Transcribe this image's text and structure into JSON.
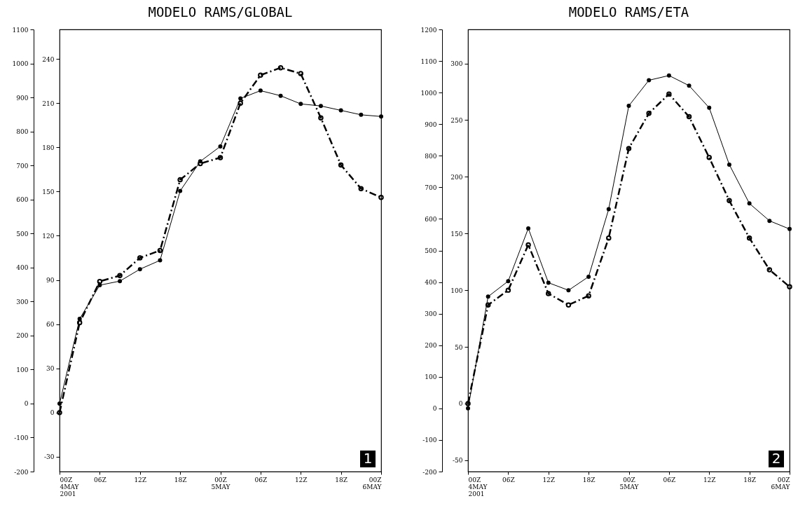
{
  "chart_data": [
    {
      "type": "line",
      "title": "MODELO RAMS/GLOBAL",
      "x": [
        "2001-05-04T00:00",
        "2001-05-04T03:00",
        "2001-05-04T06:00",
        "2001-05-04T09:00",
        "2001-05-04T12:00",
        "2001-05-04T15:00",
        "2001-05-04T18:00",
        "2001-05-04T21:00",
        "2001-05-05T00:00",
        "2001-05-05T03:00",
        "2001-05-05T06:00",
        "2001-05-05T09:00",
        "2001-05-05T12:00",
        "2001-05-05T15:00",
        "2001-05-05T18:00",
        "2001-05-05T21:00",
        "2001-05-06T00:00"
      ],
      "xlim": [
        "2001-05-04T00:00",
        "2001-05-06T00:00"
      ],
      "xticks": [
        {
          "value": "2001-05-04T00:00",
          "label": "00Z 4MAY 2001"
        },
        {
          "value": "2001-05-04T06:00",
          "label": "06Z"
        },
        {
          "value": "2001-05-04T12:00",
          "label": "12Z"
        },
        {
          "value": "2001-05-04T18:00",
          "label": "18Z"
        },
        {
          "value": "2001-05-05T00:00",
          "label": "00Z 5MAY"
        },
        {
          "value": "2001-05-05T06:00",
          "label": "06Z"
        },
        {
          "value": "2001-05-05T12:00",
          "label": "12Z"
        },
        {
          "value": "2001-05-05T18:00",
          "label": "18Z"
        },
        {
          "value": "2001-05-06T00:00",
          "label": "00Z 6MAY"
        }
      ],
      "ylim": [
        -200,
        1100
      ],
      "yticks": [
        -200,
        -100,
        0,
        100,
        200,
        300,
        400,
        500,
        600,
        700,
        800,
        900,
        1000,
        1100
      ],
      "y2lim": [
        -40,
        260
      ],
      "y2ticks": [
        -30,
        0,
        30,
        60,
        90,
        120,
        150,
        180,
        210,
        240
      ],
      "marker": "circle",
      "grid": false,
      "series": [
        {
          "color": "#000000",
          "line_style": "solid",
          "values": [
            0,
            249,
            348,
            360,
            395,
            421,
            625,
            712,
            756,
            897,
            920,
            905,
            881,
            875,
            862,
            849,
            844
          ]
        },
        {
          "color": "#000000",
          "line_style": "dashed",
          "axis": "y2",
          "values": [
            0,
            61,
            89,
            93,
            105,
            110,
            158,
            169,
            173,
            210,
            229,
            234,
            230,
            200,
            168,
            152,
            146
          ]
        }
      ],
      "annotations": [
        "1"
      ]
    },
    {
      "type": "line",
      "title": "MODELO RAMS/ETA",
      "x": [
        "2001-05-04T00:00",
        "2001-05-04T03:00",
        "2001-05-04T06:00",
        "2001-05-04T09:00",
        "2001-05-04T12:00",
        "2001-05-04T15:00",
        "2001-05-04T18:00",
        "2001-05-04T21:00",
        "2001-05-05T00:00",
        "2001-05-05T03:00",
        "2001-05-05T06:00",
        "2001-05-05T09:00",
        "2001-05-05T12:00",
        "2001-05-05T15:00",
        "2001-05-05T18:00",
        "2001-05-05T21:00",
        "2001-05-06T00:00"
      ],
      "xlim": [
        "2001-05-04T00:00",
        "2001-05-06T00:00"
      ],
      "xticks": [
        {
          "value": "2001-05-04T00:00",
          "label": "00Z 4MAY 2001"
        },
        {
          "value": "2001-05-04T06:00",
          "label": "06Z"
        },
        {
          "value": "2001-05-04T12:00",
          "label": "12Z"
        },
        {
          "value": "2001-05-04T18:00",
          "label": "18Z"
        },
        {
          "value": "2001-05-05T00:00",
          "label": "00Z 5MAY"
        },
        {
          "value": "2001-05-05T06:00",
          "label": "06Z"
        },
        {
          "value": "2001-05-05T12:00",
          "label": "12Z"
        },
        {
          "value": "2001-05-05T18:00",
          "label": "18Z"
        },
        {
          "value": "2001-05-06T00:00",
          "label": "00Z 6MAY"
        }
      ],
      "ylim": [
        -200,
        1200
      ],
      "yticks": [
        -200,
        -100,
        0,
        100,
        200,
        300,
        400,
        500,
        600,
        700,
        800,
        900,
        1000,
        1100,
        1200
      ],
      "y2lim": [
        -60,
        330
      ],
      "y2ticks": [
        -50,
        0,
        50,
        100,
        150,
        200,
        250,
        300
      ],
      "marker": "circle",
      "grid": false,
      "series": [
        {
          "color": "#000000",
          "line_style": "solid",
          "values": [
            0,
            354,
            403,
            570,
            398,
            374,
            417,
            631,
            958,
            1039,
            1054,
            1022,
            952,
            772,
            649,
            594,
            568
          ]
        },
        {
          "color": "#000000",
          "line_style": "dashed",
          "axis": "y2",
          "values": [
            0,
            87,
            100,
            140,
            97,
            87,
            95,
            146,
            225,
            256,
            273,
            253,
            217,
            179,
            146,
            118,
            103
          ]
        }
      ],
      "annotations": [
        "2"
      ]
    }
  ]
}
